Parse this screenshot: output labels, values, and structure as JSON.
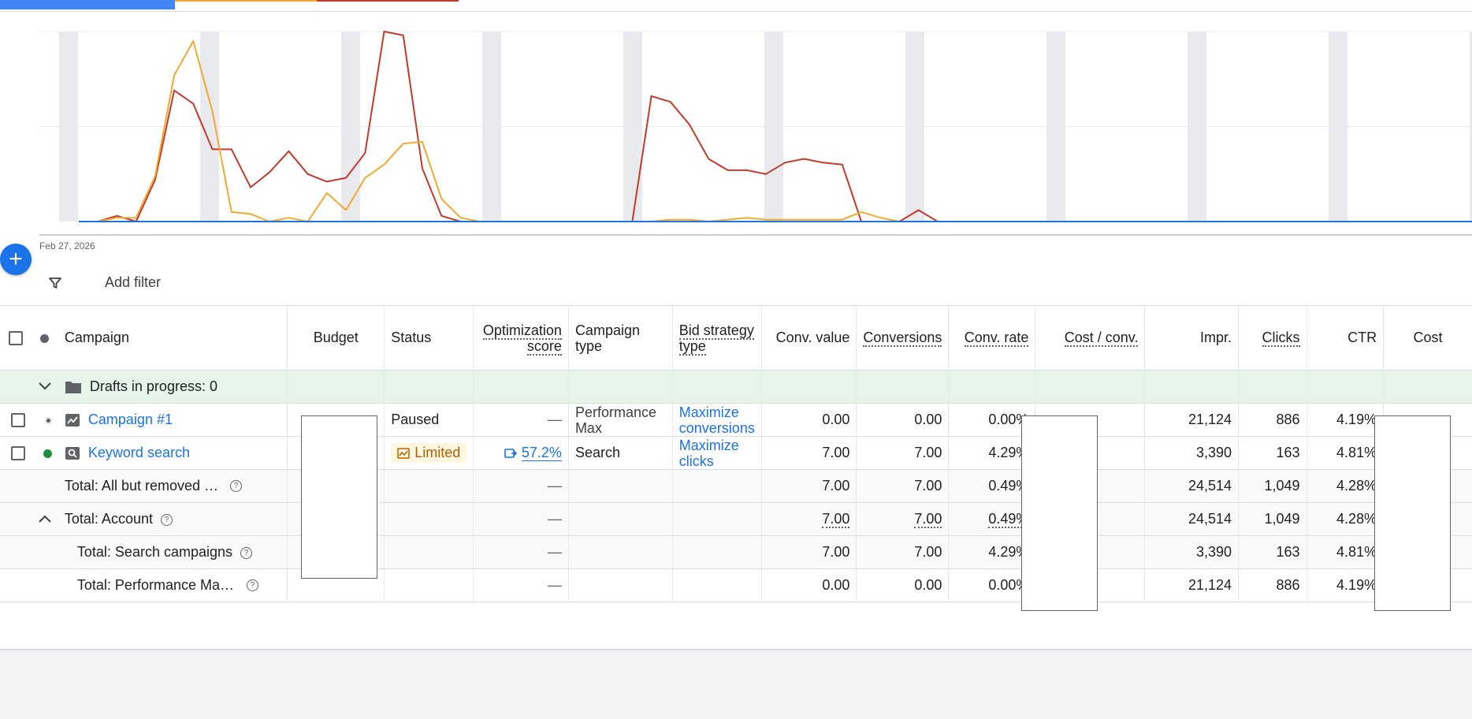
{
  "chart": {
    "date_label": "Feb 27, 2026",
    "series": [
      {
        "name": "",
        "color": "#c5392a",
        "values": [
          0,
          0,
          3,
          0,
          22,
          69,
          62,
          38,
          38,
          18,
          26,
          37,
          25,
          21,
          23,
          36,
          100,
          98,
          28,
          3,
          0,
          0,
          0,
          0,
          0,
          0,
          0,
          0,
          0,
          0,
          66,
          63,
          51,
          33,
          27,
          27,
          25,
          31,
          33,
          31,
          30,
          0,
          0,
          0,
          6,
          0,
          0,
          0,
          0,
          0,
          0,
          0,
          0,
          0,
          0,
          0,
          0,
          0,
          0,
          0,
          0,
          0,
          0,
          0,
          0,
          0,
          0,
          0,
          0,
          0,
          0,
          0,
          0,
          0
        ]
      },
      {
        "name": "",
        "color": "#f0a931",
        "values": [
          0,
          0,
          2,
          2,
          24,
          77,
          95,
          58,
          5,
          4,
          0,
          2,
          0,
          15,
          6,
          23,
          30,
          41,
          42,
          12,
          2,
          0,
          0,
          0,
          0,
          0,
          0,
          0,
          0,
          0,
          0,
          1,
          1,
          0,
          1,
          2,
          1,
          1,
          1,
          1,
          1,
          5,
          2,
          0,
          0,
          0,
          0,
          0,
          0,
          0,
          0,
          0,
          0,
          0,
          0,
          0,
          0,
          0,
          0,
          0,
          0,
          0,
          0,
          0,
          0,
          0,
          0,
          0,
          0,
          0,
          0,
          0,
          0,
          0
        ]
      }
    ]
  },
  "topbar": {
    "colors": [
      "#1a73e8",
      "#f0a931",
      "#c5392a"
    ]
  },
  "filter": {
    "label": "Add filter"
  },
  "fab": {
    "symbol": "+"
  },
  "table": {
    "headers": {
      "campaign": "Campaign",
      "budget": "Budget",
      "status": "Status",
      "opt_score": "Optimization score",
      "campaign_type": "Campaign type",
      "bid_strategy": "Bid strategy type",
      "conv_value": "Conv. value",
      "conversions": "Conversions",
      "conv_rate": "Conv. rate",
      "cost_conv": "Cost / conv.",
      "impr": "Impr.",
      "clicks": "Clicks",
      "ctr": "CTR",
      "cost": "Cost"
    },
    "drafts": "Drafts in progress: 0",
    "rows": [
      {
        "name": "Campaign #1",
        "status": "Paused",
        "opt": "—",
        "type": "Performance Max",
        "bid": "Maximize conversions",
        "conv_value": "0.00",
        "conversions": "0.00",
        "conv_rate": "0.00%",
        "impr": "21,124",
        "clicks": "886",
        "ctr": "4.19%"
      },
      {
        "name": "Keyword search",
        "status": "Limited",
        "opt": "57.2%",
        "type": "Search",
        "bid": "Maximize clicks",
        "conv_value": "7.00",
        "conversions": "7.00",
        "conv_rate": "4.29%",
        "impr": "3,390",
        "clicks": "163",
        "ctr": "4.81%"
      }
    ],
    "totals": [
      {
        "name": "Total: All but removed campaigns",
        "opt": "—",
        "conv_value": "7.00",
        "conversions": "7.00",
        "conv_rate": "0.49%",
        "impr": "24,514",
        "clicks": "1,049",
        "ctr": "4.28%"
      },
      {
        "name": "Total: Account",
        "opt": "—",
        "conv_value": "7.00",
        "conversions": "7.00",
        "conv_rate": "0.49%",
        "impr": "24,514",
        "clicks": "1,049",
        "ctr": "4.28%"
      },
      {
        "name": "Total: Search campaigns",
        "opt": "—",
        "conv_value": "7.00",
        "conversions": "7.00",
        "conv_rate": "4.29%",
        "impr": "3,390",
        "clicks": "163",
        "ctr": "4.81%"
      },
      {
        "name": "Total: Performance Max campaigns",
        "opt": "—",
        "conv_value": "0.00",
        "conversions": "0.00",
        "conv_rate": "0.00%",
        "impr": "21,124",
        "clicks": "886",
        "ctr": "4.19%"
      }
    ]
  }
}
